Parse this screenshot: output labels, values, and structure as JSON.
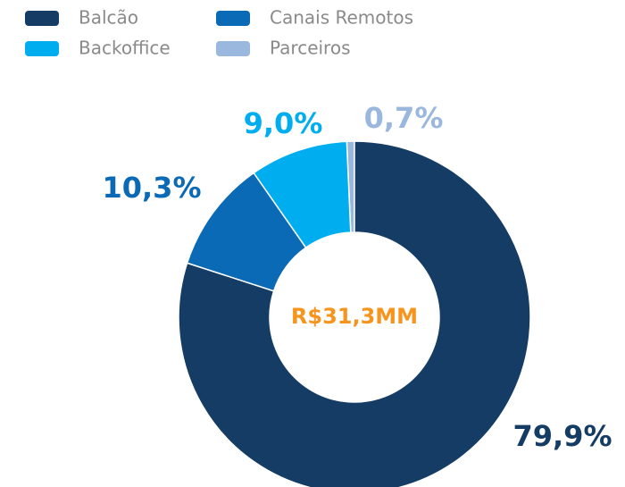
{
  "chart_data": {
    "type": "donut",
    "categories": [
      "Balcão",
      "Canais Remotos",
      "Backoffice",
      "Parceiros"
    ],
    "values": [
      79.9,
      10.3,
      9.0,
      0.7
    ],
    "value_labels": [
      "79,9%",
      "10,3%",
      "9,0%",
      "0,7%"
    ],
    "colors": [
      "#143c64",
      "#0b6ab5",
      "#00aeef",
      "#9ab7dd"
    ],
    "center_label": "R$31,3MM",
    "center_color": "#f7941d"
  }
}
